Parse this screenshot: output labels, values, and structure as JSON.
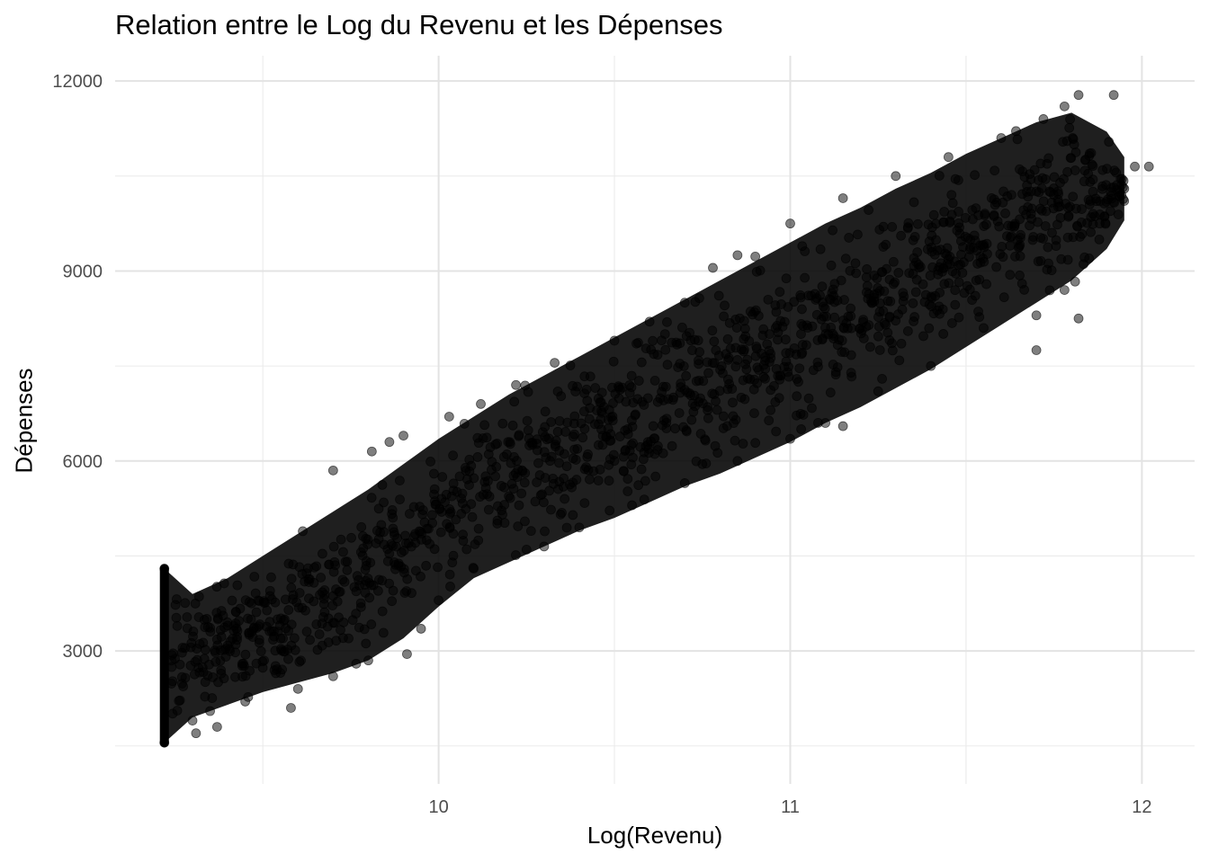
{
  "chart_data": {
    "type": "scatter",
    "title": "Relation entre le Log du Revenu et les Dépenses",
    "xlabel": "Log(Revenu)",
    "ylabel": "Dépenses",
    "xlim": [
      9.08,
      12.15
    ],
    "ylim": [
      900,
      12400
    ],
    "x_ticks": [
      10,
      11,
      12
    ],
    "y_ticks": [
      3000,
      6000,
      9000,
      12000
    ],
    "x_minor_ticks": [
      9.5,
      10.5,
      11.5
    ],
    "y_minor_ticks": [
      1500,
      4500,
      7500,
      10500
    ],
    "grid": true,
    "legend": "none",
    "point_color": "#000000",
    "point_opacity": 0.5,
    "points_estimated_count": 40000,
    "points": [
      [
        9.22,
        1550
      ],
      [
        9.22,
        4300
      ],
      [
        9.31,
        1700
      ],
      [
        9.37,
        1800
      ],
      [
        9.58,
        2100
      ],
      [
        9.7,
        5850
      ],
      [
        9.81,
        6150
      ],
      [
        9.86,
        6300
      ],
      [
        9.9,
        6400
      ],
      [
        10.03,
        6700
      ],
      [
        10.12,
        6900
      ],
      [
        10.22,
        7200
      ],
      [
        10.33,
        7550
      ],
      [
        10.5,
        7900
      ],
      [
        10.6,
        8200
      ],
      [
        10.7,
        8500
      ],
      [
        10.78,
        9050
      ],
      [
        10.85,
        9250
      ],
      [
        11.0,
        9750
      ],
      [
        11.15,
        10150
      ],
      [
        11.3,
        10500
      ],
      [
        11.45,
        10800
      ],
      [
        11.6,
        11100
      ],
      [
        11.72,
        11400
      ],
      [
        11.78,
        11600
      ],
      [
        11.82,
        11780
      ],
      [
        11.92,
        11780
      ],
      [
        11.98,
        10650
      ],
      [
        12.02,
        10650
      ],
      [
        11.95,
        10300
      ],
      [
        11.88,
        9750
      ],
      [
        11.85,
        9200
      ],
      [
        11.78,
        8700
      ],
      [
        11.7,
        8300
      ],
      [
        11.55,
        8100
      ],
      [
        11.4,
        7500
      ],
      [
        11.25,
        7100
      ],
      [
        11.1,
        6600
      ],
      [
        11.0,
        6350
      ],
      [
        10.85,
        6000
      ],
      [
        10.7,
        5650
      ],
      [
        10.55,
        5300
      ],
      [
        10.4,
        4950
      ],
      [
        10.25,
        4600
      ],
      [
        10.1,
        4300
      ],
      [
        10.0,
        3800
      ],
      [
        9.95,
        3350
      ],
      [
        9.8,
        2850
      ],
      [
        9.7,
        2600
      ],
      [
        9.6,
        2400
      ],
      [
        9.45,
        2200
      ],
      [
        9.35,
        2050
      ],
      [
        9.3,
        1900
      ],
      [
        11.7,
        7750
      ],
      [
        11.82,
        8250
      ],
      [
        11.15,
        6550
      ],
      [
        10.75,
        5950
      ],
      [
        10.3,
        4650
      ],
      [
        9.91,
        2950
      ],
      [
        9.4,
        3400
      ]
    ],
    "bands": [
      {
        "x": 9.22,
        "ylo": 1550,
        "yhi": 4300
      },
      {
        "x": 9.3,
        "ylo": 1950,
        "yhi": 3900
      },
      {
        "x": 9.4,
        "ylo": 2150,
        "yhi": 4150
      },
      {
        "x": 9.5,
        "ylo": 2350,
        "yhi": 4500
      },
      {
        "x": 9.6,
        "ylo": 2500,
        "yhi": 4850
      },
      {
        "x": 9.7,
        "ylo": 2650,
        "yhi": 5200
      },
      {
        "x": 9.8,
        "ylo": 2850,
        "yhi": 5550
      },
      {
        "x": 9.9,
        "ylo": 3200,
        "yhi": 5950
      },
      {
        "x": 10.0,
        "ylo": 3700,
        "yhi": 6350
      },
      {
        "x": 10.1,
        "ylo": 4150,
        "yhi": 6700
      },
      {
        "x": 10.2,
        "ylo": 4400,
        "yhi": 7050
      },
      {
        "x": 10.3,
        "ylo": 4650,
        "yhi": 7350
      },
      {
        "x": 10.4,
        "ylo": 4900,
        "yhi": 7650
      },
      {
        "x": 10.5,
        "ylo": 5100,
        "yhi": 7950
      },
      {
        "x": 10.6,
        "ylo": 5350,
        "yhi": 8250
      },
      {
        "x": 10.7,
        "ylo": 5600,
        "yhi": 8550
      },
      {
        "x": 10.8,
        "ylo": 5800,
        "yhi": 8850
      },
      {
        "x": 10.9,
        "ylo": 6050,
        "yhi": 9150
      },
      {
        "x": 11.0,
        "ylo": 6300,
        "yhi": 9450
      },
      {
        "x": 11.1,
        "ylo": 6600,
        "yhi": 9750
      },
      {
        "x": 11.2,
        "ylo": 6850,
        "yhi": 10000
      },
      {
        "x": 11.3,
        "ylo": 7150,
        "yhi": 10300
      },
      {
        "x": 11.4,
        "ylo": 7450,
        "yhi": 10550
      },
      {
        "x": 11.5,
        "ylo": 7800,
        "yhi": 10850
      },
      {
        "x": 11.6,
        "ylo": 8150,
        "yhi": 11100
      },
      {
        "x": 11.7,
        "ylo": 8500,
        "yhi": 11350
      },
      {
        "x": 11.8,
        "ylo": 8850,
        "yhi": 11500
      },
      {
        "x": 11.9,
        "ylo": 9350,
        "yhi": 11200
      },
      {
        "x": 11.95,
        "ylo": 9800,
        "yhi": 10800
      }
    ]
  }
}
